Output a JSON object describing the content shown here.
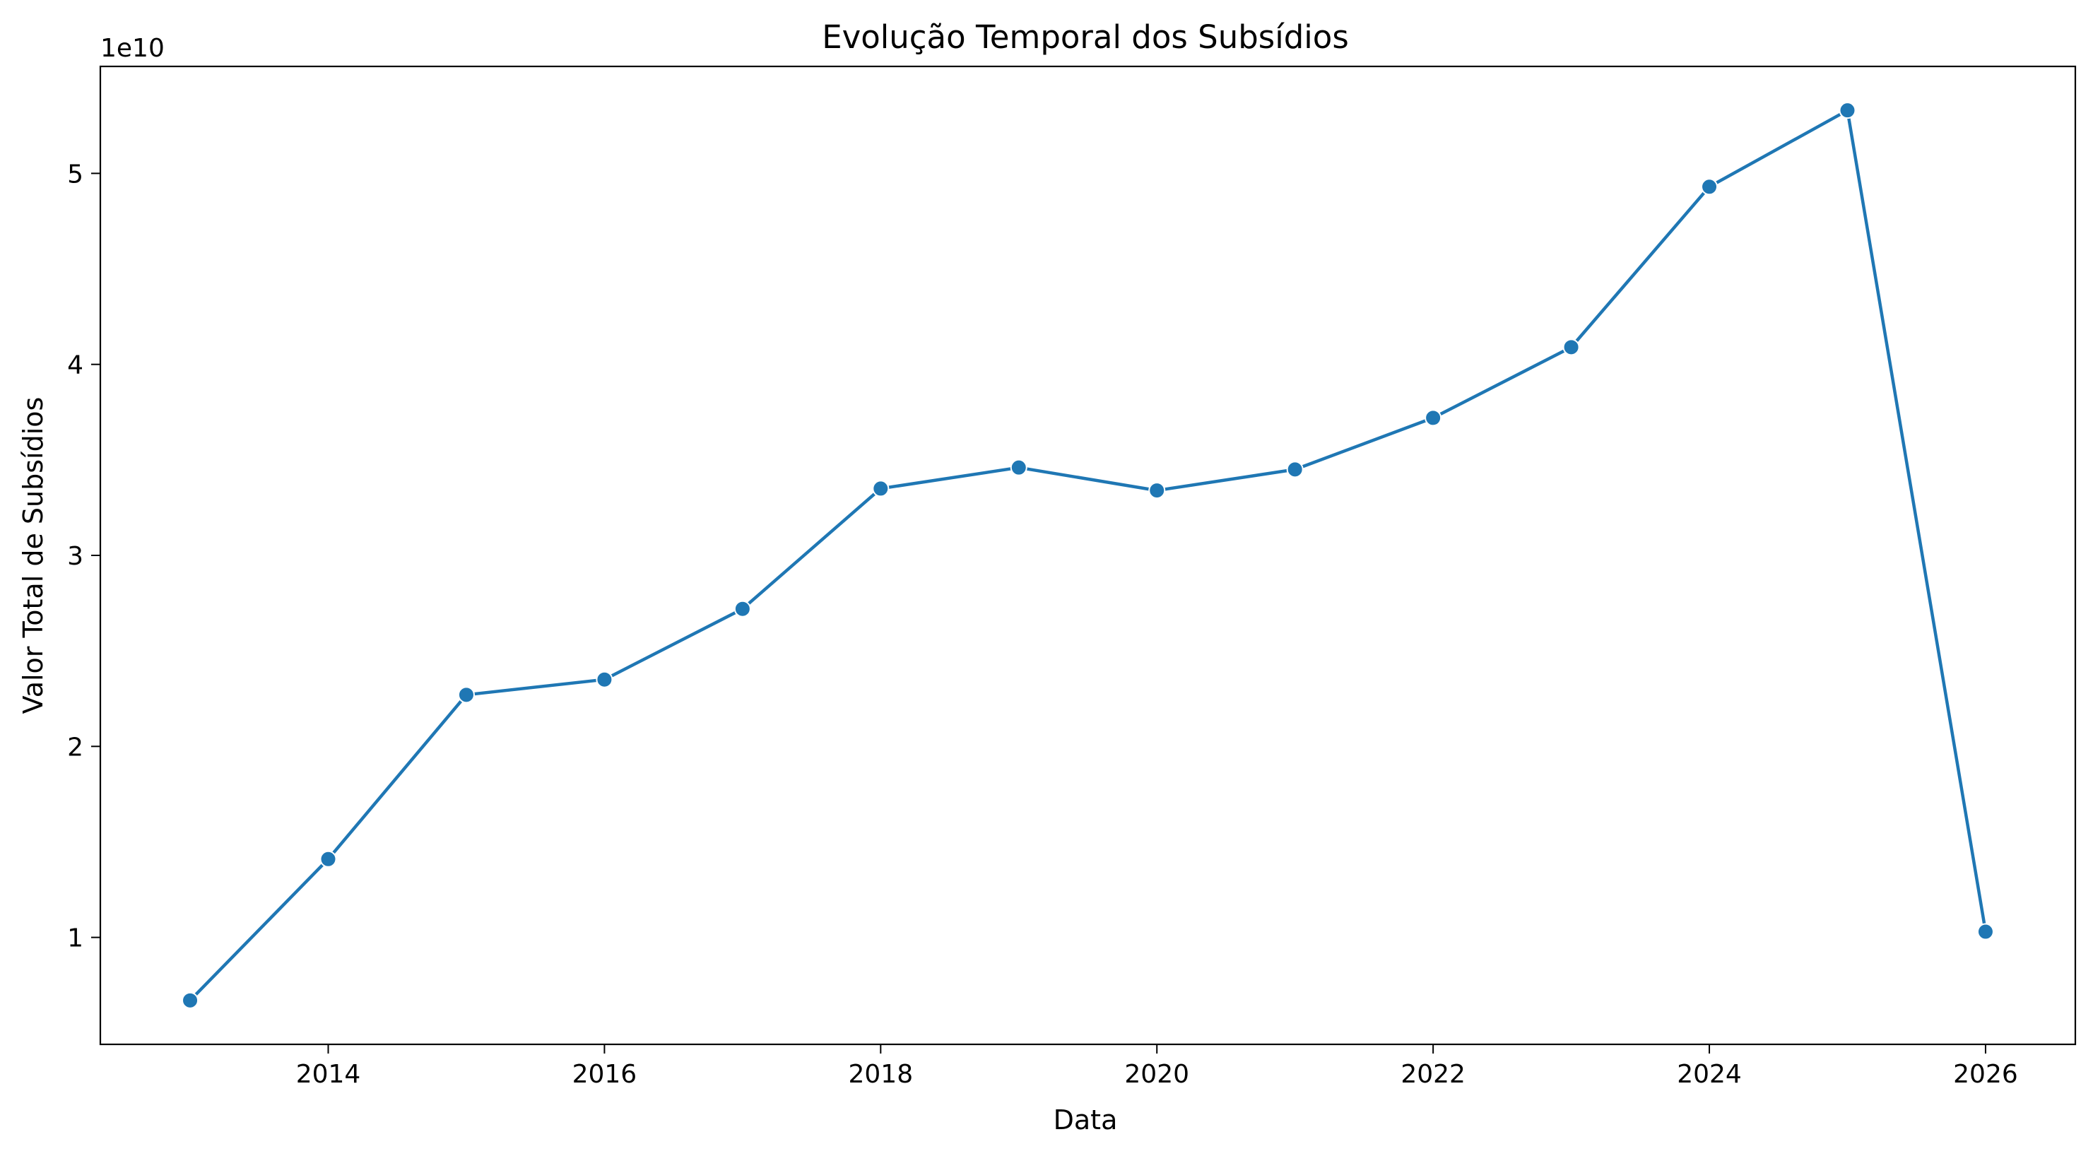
{
  "chart_data": {
    "type": "line",
    "title": "Evolução Temporal dos Subsídios",
    "xlabel": "Data",
    "ylabel": "Valor Total de Subsídios",
    "y_offset_label": "1e10",
    "y_scale_factor": 10000000000,
    "xlim": [
      2012.35,
      2026.65
    ],
    "ylim": [
      4400000000,
      55600000000
    ],
    "x_ticks": [
      2014,
      2016,
      2018,
      2020,
      2022,
      2024,
      2026
    ],
    "x_tick_labels": [
      "2014",
      "2016",
      "2018",
      "2020",
      "2022",
      "2024",
      "2026"
    ],
    "y_ticks": [
      10000000000,
      20000000000,
      30000000000,
      40000000000,
      50000000000
    ],
    "y_tick_labels": [
      "1",
      "2",
      "3",
      "4",
      "5"
    ],
    "grid": false,
    "legend": "none",
    "colors": {
      "series": "#1f77b4",
      "axes": "#000000",
      "marker_edge": "#ffffff"
    },
    "series": [
      {
        "x": [
          2013,
          2014,
          2015,
          2016,
          2017,
          2018,
          2019,
          2020,
          2021,
          2022,
          2023,
          2024,
          2025,
          2026
        ],
        "values": [
          6700000000,
          14100000000,
          22700000000,
          23500000000,
          27200000000,
          33500000000,
          34600000000,
          33400000000,
          34500000000,
          37200000000,
          40900000000,
          49300000000,
          53300000000,
          10300000000
        ]
      }
    ]
  }
}
